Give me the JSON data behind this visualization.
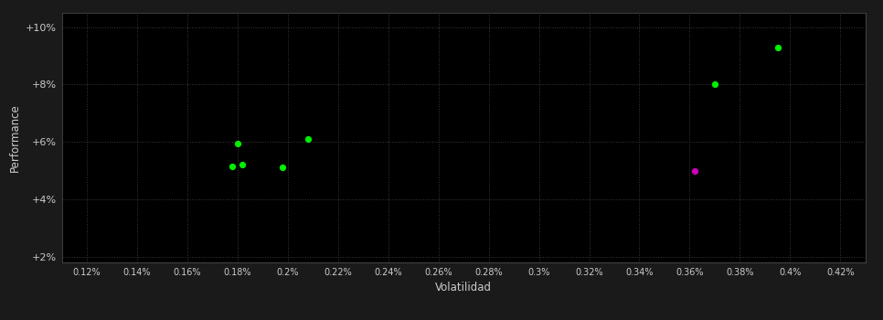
{
  "xlabel": "Volatilidad",
  "ylabel": "Performance",
  "outer_bg": "#1a1a1a",
  "inner_bg": "#000000",
  "grid_color": "#3a3a3a",
  "text_color": "#cccccc",
  "green_points": [
    [
      0.178,
      0.0515
    ],
    [
      0.182,
      0.052
    ],
    [
      0.18,
      0.0595
    ],
    [
      0.198,
      0.051
    ],
    [
      0.208,
      0.061
    ],
    [
      0.37,
      0.08
    ],
    [
      0.395,
      0.093
    ]
  ],
  "magenta_points": [
    [
      0.362,
      0.05
    ]
  ],
  "xlim": [
    0.11,
    0.43
  ],
  "ylim": [
    0.018,
    0.105
  ],
  "xticks": [
    0.12,
    0.14,
    0.16,
    0.18,
    0.2,
    0.22,
    0.24,
    0.26,
    0.28,
    0.3,
    0.32,
    0.34,
    0.36,
    0.38,
    0.4,
    0.42
  ],
  "xtick_labels": [
    "0.12%",
    "0.14%",
    "0.16%",
    "0.18%",
    "0.2%",
    "0.22%",
    "0.24%",
    "0.26%",
    "0.28%",
    "0.3%",
    "0.32%",
    "0.34%",
    "0.36%",
    "0.38%",
    "0.4%",
    "0.42%"
  ],
  "yticks": [
    0.02,
    0.04,
    0.06,
    0.08,
    0.1
  ],
  "ytick_labels": [
    "+2%",
    "+4%",
    "+6%",
    "+8%",
    "+10%"
  ],
  "green_color": "#00ee00",
  "magenta_color": "#cc00bb",
  "point_size": 18,
  "marker": "o"
}
